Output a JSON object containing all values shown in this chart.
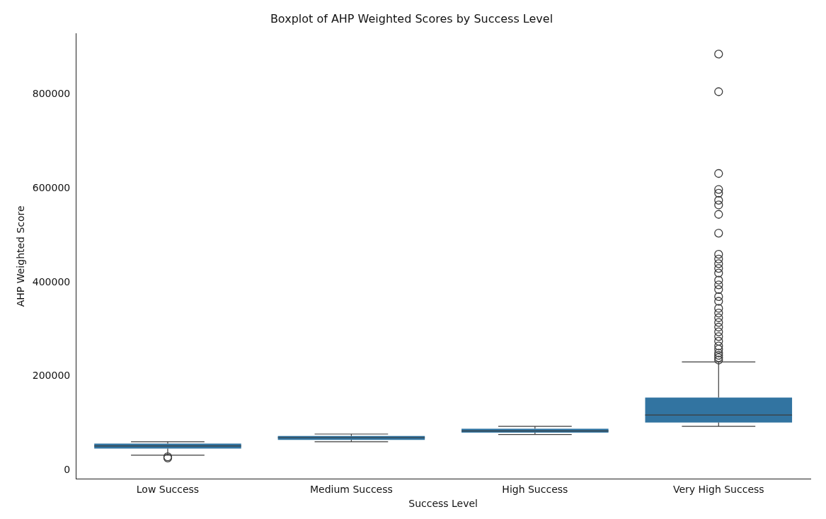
{
  "chart_data": {
    "type": "box",
    "title": "Boxplot of AHP Weighted Scores by Success Level",
    "xlabel": "Success Level",
    "ylabel": "AHP Weighted Score",
    "categories": [
      "Low Success",
      "Medium Success",
      "High Success",
      "Very High Success"
    ],
    "color": "#3274a1",
    "boxes": [
      {
        "low": 32500,
        "q1": 46500,
        "median": 52000,
        "q3": 57000,
        "high": 61000,
        "outliers": [
          29000,
          26500
        ]
      },
      {
        "low": 61000,
        "q1": 65000,
        "median": 70000,
        "q3": 73500,
        "high": 77500
      },
      {
        "low": 76500,
        "q1": 80500,
        "median": 84000,
        "q3": 89000,
        "high": 94000
      },
      {
        "low": 94000,
        "q1": 102000,
        "median": 118000,
        "q3": 155000,
        "high": 231000,
        "outliers": [
          886000,
          806000,
          632000,
          598000,
          590000,
          575000,
          565000,
          545000,
          505000,
          460000,
          450000,
          440000,
          430000,
          420000,
          405000,
          395000,
          385000,
          370000,
          360000,
          345000,
          335000,
          325000,
          315000,
          305000,
          295000,
          285000,
          275000,
          265000,
          258000,
          250000,
          245000,
          240000,
          235000
        ]
      }
    ],
    "ylim": [
      -18000,
      930000
    ],
    "yticks": [
      0,
      200000,
      400000,
      600000,
      800000
    ]
  }
}
